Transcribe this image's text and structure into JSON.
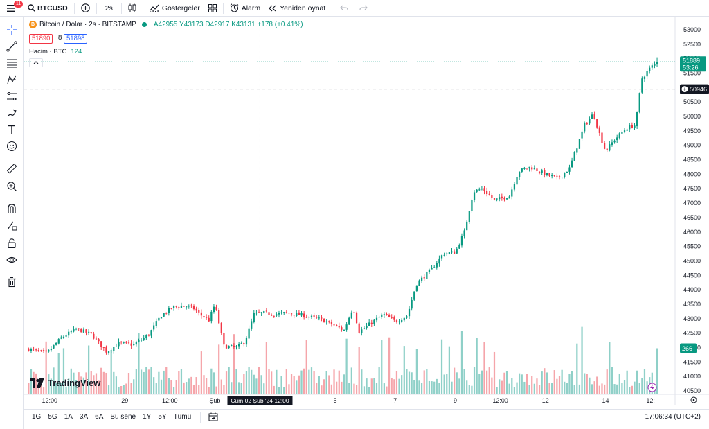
{
  "toolbar": {
    "notification_count": "11",
    "symbol": "BTCUSD",
    "interval": "2s",
    "indicators_label": "Göstergeler",
    "alert_label": "Alarm",
    "replay_label": "Yeniden oynat"
  },
  "legend": {
    "title": "Bitcoin / Dolar · 2s · BITSTAMP",
    "coin_letter": "B",
    "open": "A42955",
    "high": "Y43173",
    "low": "D42917",
    "close": "K43131",
    "change": "+178 (+0.41%)",
    "bid": "51890",
    "spread": "8",
    "ask": "51898",
    "volume_label": "Hacim · BTC",
    "volume_value": "124"
  },
  "price_axis": {
    "labels": [
      "53000",
      "52500",
      "52000",
      "51500",
      "51000",
      "50500",
      "50000",
      "49500",
      "49000",
      "48500",
      "48000",
      "47500",
      "47000",
      "46500",
      "46000",
      "45500",
      "45000",
      "44500",
      "44000",
      "43500",
      "43000",
      "42500",
      "42000",
      "41500",
      "41000",
      "40500"
    ],
    "current_price": "51889",
    "countdown": "53:26",
    "crosshair_price": "50946",
    "volume_tag": "266"
  },
  "time_axis": {
    "labels": [
      {
        "text": "12:00",
        "day": 26.5
      },
      {
        "text": "29",
        "day": 29
      },
      {
        "text": "12:00",
        "day": 30.5
      },
      {
        "text": "Şub",
        "day": 32
      },
      {
        "text": "5",
        "day": 36
      },
      {
        "text": "7",
        "day": 38
      },
      {
        "text": "9",
        "day": 40
      },
      {
        "text": "12:00",
        "day": 41.5
      },
      {
        "text": "12",
        "day": 43
      },
      {
        "text": "14",
        "day": 45
      },
      {
        "text": "12:",
        "day": 46.5
      }
    ],
    "crosshair_label": "Cum 02 Şub '24   12:00",
    "crosshair_day": 33.5
  },
  "logo_text": "TradingView",
  "bottom": {
    "ranges": [
      "1G",
      "5G",
      "1A",
      "3A",
      "6A",
      "Bu sene",
      "1Y",
      "5Y",
      "Tümü"
    ],
    "time": "17:06:34 (UTC+2)"
  },
  "colors": {
    "up": "#089981",
    "down": "#f23645",
    "vol_up": "#8fd0c8",
    "vol_down": "#f5a5aa",
    "accent": "#2962ff"
  },
  "chart_data": {
    "type": "candlestick",
    "interval": "2 hours",
    "x_range_days": [
      25.7,
      46.9
    ],
    "ylim": [
      40400,
      53300
    ],
    "anchors": [
      [
        25.8,
        41950
      ],
      [
        26.4,
        41800
      ],
      [
        26.9,
        42350
      ],
      [
        27.4,
        42650
      ],
      [
        27.9,
        42450
      ],
      [
        28.4,
        41850
      ],
      [
        28.8,
        42150
      ],
      [
        29.3,
        42100
      ],
      [
        29.8,
        42450
      ],
      [
        30.2,
        43100
      ],
      [
        30.6,
        43400
      ],
      [
        31.0,
        43450
      ],
      [
        31.3,
        43350
      ],
      [
        31.5,
        43150
      ],
      [
        31.8,
        42950
      ],
      [
        32.0,
        43500
      ],
      [
        32.3,
        42050
      ],
      [
        32.7,
        42000
      ],
      [
        33.0,
        42200
      ],
      [
        33.3,
        43150
      ],
      [
        33.6,
        43200
      ],
      [
        34.0,
        43150
      ],
      [
        34.4,
        43200
      ],
      [
        35.0,
        43100
      ],
      [
        35.6,
        42950
      ],
      [
        36.0,
        42750
      ],
      [
        36.3,
        42600
      ],
      [
        36.6,
        43400
      ],
      [
        36.8,
        42550
      ],
      [
        37.2,
        42850
      ],
      [
        37.6,
        43150
      ],
      [
        38.0,
        42900
      ],
      [
        38.4,
        43100
      ],
      [
        38.7,
        44200
      ],
      [
        39.2,
        44700
      ],
      [
        39.6,
        45250
      ],
      [
        40.0,
        45300
      ],
      [
        40.3,
        46000
      ],
      [
        40.6,
        47400
      ],
      [
        40.9,
        47500
      ],
      [
        41.3,
        47100
      ],
      [
        41.8,
        47250
      ],
      [
        42.1,
        48100
      ],
      [
        42.5,
        48250
      ],
      [
        43.0,
        48000
      ],
      [
        43.4,
        47850
      ],
      [
        43.8,
        48200
      ],
      [
        44.3,
        49700
      ],
      [
        44.6,
        50100
      ],
      [
        44.8,
        49400
      ],
      [
        45.0,
        48800
      ],
      [
        45.3,
        49200
      ],
      [
        45.7,
        49600
      ],
      [
        46.0,
        49700
      ],
      [
        46.2,
        51300
      ],
      [
        46.5,
        51700
      ],
      [
        46.75,
        51889
      ]
    ],
    "volume_range": [
      0,
      400
    ]
  }
}
